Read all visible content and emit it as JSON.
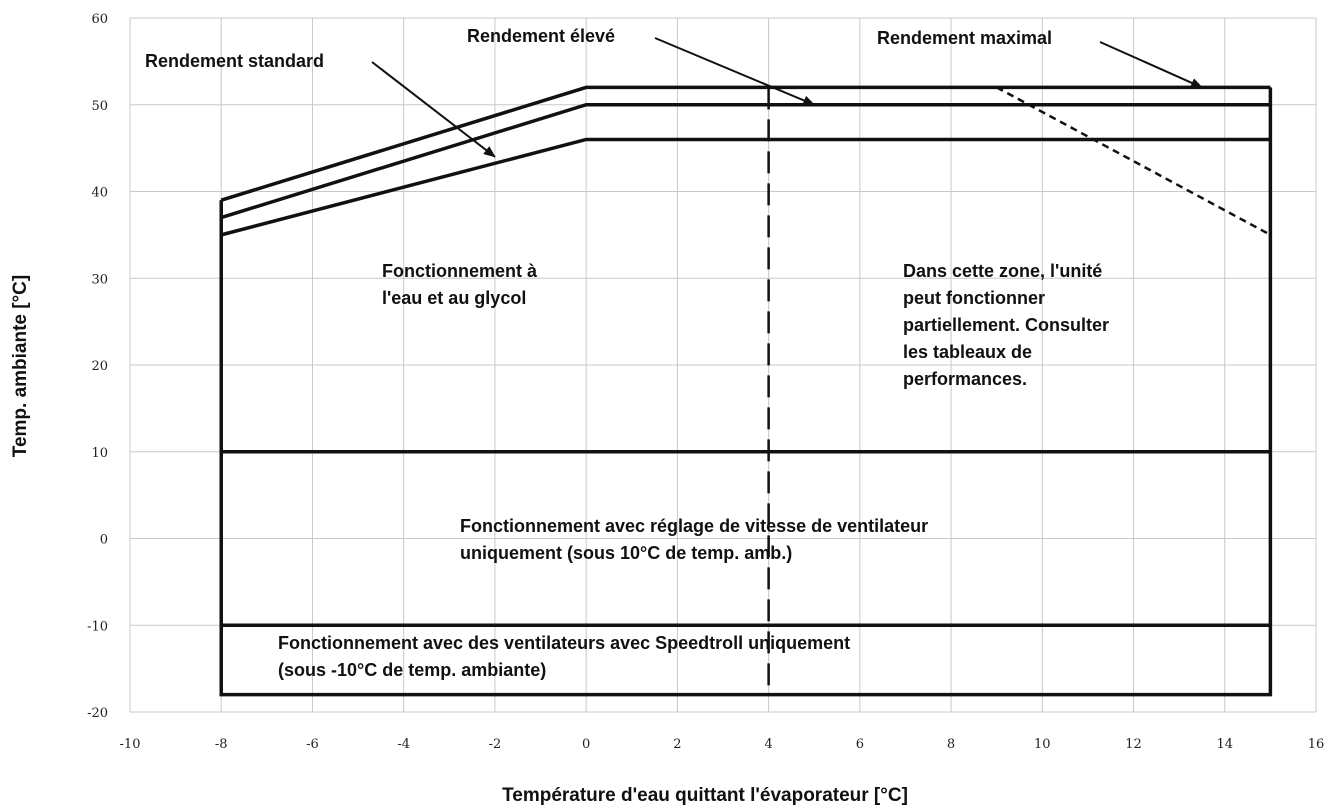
{
  "chart_data": {
    "type": "line",
    "title": "",
    "xlabel": "Température d'eau quittant l'évaporateur [°C]",
    "ylabel": "Temp. ambiante [°C]",
    "xlim": [
      -10,
      16
    ],
    "ylim": [
      -20,
      60
    ],
    "xticks": [
      -10,
      -8,
      -6,
      -4,
      -2,
      0,
      2,
      4,
      6,
      8,
      10,
      12,
      14,
      16
    ],
    "yticks": [
      -20,
      -10,
      0,
      10,
      20,
      30,
      40,
      50,
      60
    ],
    "grid": true,
    "legend": "none",
    "series": [
      {
        "name": "Rendement standard",
        "style": "solid",
        "x": [
          -8,
          0,
          15
        ],
        "y": [
          35,
          46,
          46
        ]
      },
      {
        "name": "Rendement élevé",
        "style": "solid",
        "x": [
          -8,
          0,
          15
        ],
        "y": [
          37,
          50,
          50
        ]
      },
      {
        "name": "Rendement maximal",
        "style": "solid",
        "x": [
          -8,
          0,
          15
        ],
        "y": [
          39,
          52,
          52
        ]
      },
      {
        "style": "solid",
        "x": [
          -8,
          -8,
          15,
          15
        ],
        "y": [
          39,
          -18,
          -18,
          52
        ]
      },
      {
        "style": "solid",
        "x": [
          -8,
          15
        ],
        "y": [
          10,
          10
        ]
      },
      {
        "style": "solid",
        "x": [
          -8,
          15
        ],
        "y": [
          -10,
          -10
        ]
      },
      {
        "style": "dashed",
        "x": [
          9,
          15
        ],
        "y": [
          52,
          35
        ]
      },
      {
        "style": "longdash",
        "x": [
          4,
          4
        ],
        "y": [
          52,
          -18
        ]
      }
    ],
    "annotations": [
      {
        "text": "Rendement standard",
        "arrow_to": [
          -2,
          44
        ]
      },
      {
        "text": "Rendement élevé",
        "arrow_to": [
          5,
          50
        ]
      },
      {
        "text": "Rendement maximal",
        "arrow_to": [
          13.5,
          52
        ]
      },
      {
        "text": [
          "Fonctionnement à",
          "l'eau et au glycol"
        ]
      },
      {
        "text": [
          "Dans cette zone, l'unité",
          "peut fonctionner",
          "partiellement. Consulter",
          "les tableaux de",
          "performances."
        ]
      },
      {
        "text": [
          "Fonctionnement avec réglage de vitesse de ventilateur",
          "uniquement (sous 10°C de temp. amb.)"
        ]
      },
      {
        "text": [
          "Fonctionnement avec des ventilateurs avec Speedtroll uniquement",
          "(sous -10°C de temp. ambiante)"
        ]
      }
    ]
  }
}
